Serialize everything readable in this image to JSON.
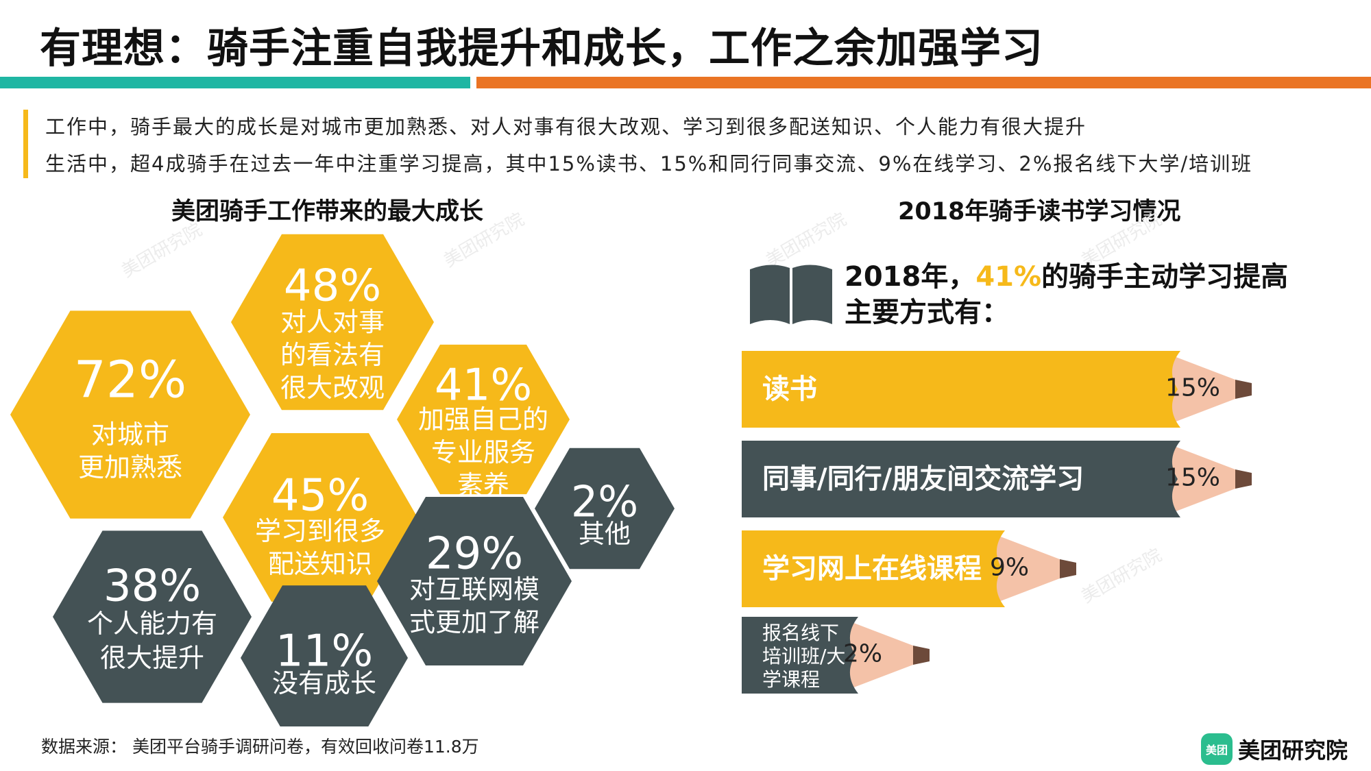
{
  "header": {
    "title": "有理想：骑手注重自我提升和成长，工作之余加强学习"
  },
  "intro": {
    "line1": "工作中，骑手最大的成长是对城市更加熟悉、对人对事有很大改观、学习到很多配送知识、个人能力有很大提升",
    "line2": "生活中，超4成骑手在过去一年中注重学习提高，其中15%读书、15%和同行同事交流、9%在线学习、2%报名线下大学/培训班"
  },
  "watermark": "美团研究院",
  "colors": {
    "yellow": "#f6b91a",
    "dark": "#445255",
    "teal": "#1fb6a3",
    "orange": "#ea7424",
    "pencil_wood": "#f4c2a8",
    "pencil_lead": "#6d4a3a",
    "logo_green": "#2bbd8e"
  },
  "left_section": {
    "title": "美团骑手工作带来的最大成长"
  },
  "right_section": {
    "title": "2018年骑手读书学习情况",
    "headline_prefix": "2018年，",
    "headline_highlight": "41%",
    "headline_suffix": "的骑手主动学习提高",
    "headline_line2": "主要方式有：",
    "book_icon": "open-book-icon"
  },
  "chart_data": [
    {
      "type": "hexagon",
      "title": "美团骑手工作带来的最大成长",
      "items": [
        {
          "label": "对城市更加熟悉",
          "lines": [
            "对城市",
            "更加熟悉"
          ],
          "pct": "72%",
          "value": 72,
          "color": "yellow"
        },
        {
          "label": "对人对事的看法有很大改观",
          "lines": [
            "对人对事",
            "的看法有",
            "很大改观"
          ],
          "pct": "48%",
          "value": 48,
          "color": "yellow"
        },
        {
          "label": "学习到很多配送知识",
          "lines": [
            "学习到很多",
            "配送知识"
          ],
          "pct": "45%",
          "value": 45,
          "color": "yellow"
        },
        {
          "label": "加强自己的专业服务素养",
          "lines": [
            "加强自己的",
            "专业服务",
            "素养"
          ],
          "pct": "41%",
          "value": 41,
          "color": "yellow"
        },
        {
          "label": "个人能力有很大提升",
          "lines": [
            "个人能力有",
            "很大提升"
          ],
          "pct": "38%",
          "value": 38,
          "color": "dark"
        },
        {
          "label": "对互联网模式更加了解",
          "lines": [
            "对互联网模",
            "式更加了解"
          ],
          "pct": "29%",
          "value": 29,
          "color": "dark"
        },
        {
          "label": "没有成长",
          "lines": [
            "没有成长"
          ],
          "pct": "11%",
          "value": 11,
          "color": "dark"
        },
        {
          "label": "其他",
          "lines": [
            "其他"
          ],
          "pct": "2%",
          "value": 2,
          "color": "dark"
        }
      ]
    },
    {
      "type": "bar",
      "title": "2018年骑手读书学习情况",
      "unit": "%",
      "categories": [
        "读书",
        "同事/同行/朋友间交流学习",
        "学习网上在线课程",
        "报名线下培训班/大学课程"
      ],
      "label_lines": [
        [
          "读书"
        ],
        [
          "同事/同行/朋友间交流学习"
        ],
        [
          "学习网上在线课程"
        ],
        [
          "报名线下",
          "培训班/大",
          "学课程"
        ]
      ],
      "values": [
        15,
        15,
        9,
        2
      ],
      "value_labels": [
        "15%",
        "15%",
        "9%",
        "2%"
      ],
      "colors": [
        "yellow",
        "dark",
        "yellow",
        "dark"
      ]
    }
  ],
  "footer": {
    "source": "数据来源： 美团平台骑手调研问卷，有效回收问卷11.8万",
    "logo_badge": "美团",
    "logo_text": "美团研究院"
  }
}
